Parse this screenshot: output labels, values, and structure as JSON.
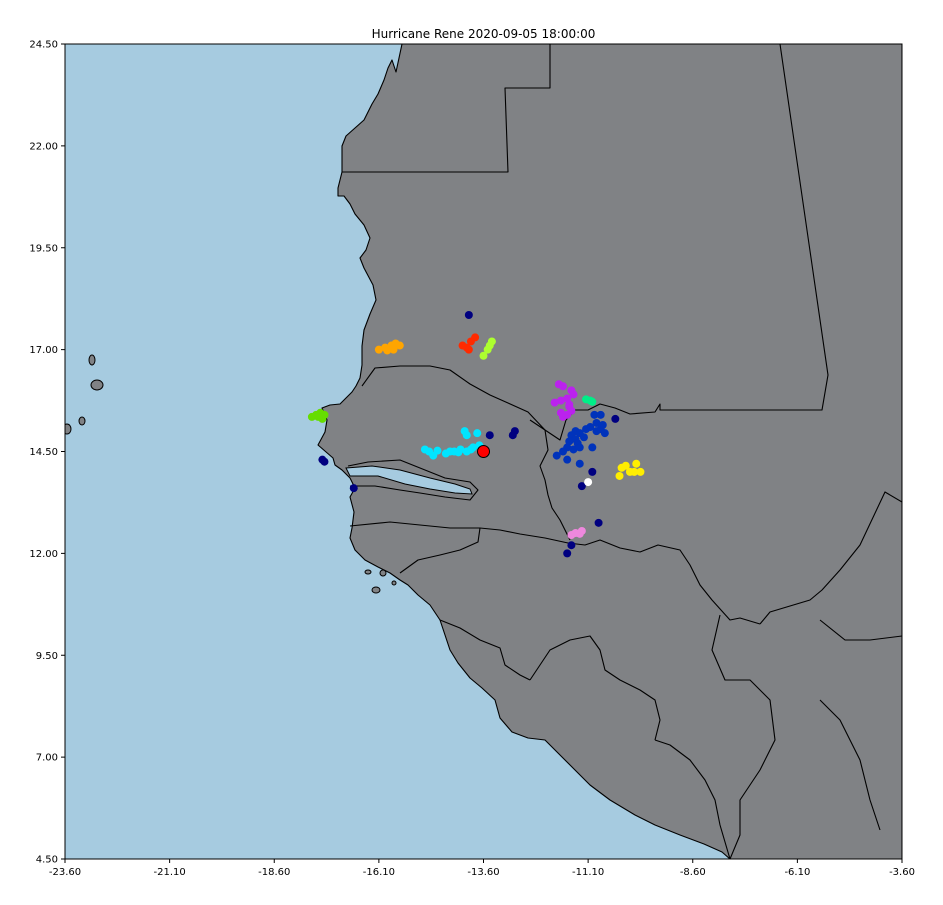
{
  "title": "Hurricane Rene 2020-09-05 18:00:00",
  "colors": {
    "ocean": "#a6cbe0",
    "land": "#808285",
    "border": "#000000"
  },
  "chart_data": {
    "type": "scatter",
    "title": "Hurricane Rene 2020-09-05 18:00:00",
    "xlabel": "",
    "ylabel": "",
    "xlim": [
      -23.6,
      -3.6
    ],
    "ylim": [
      4.5,
      24.5
    ],
    "x_ticks": [
      "-23.60",
      "-21.10",
      "-18.60",
      "-16.10",
      "-13.60",
      "-11.10",
      "-8.60",
      "-6.10",
      "-3.60"
    ],
    "y_ticks": [
      "4.50",
      "7.00",
      "9.50",
      "12.00",
      "14.50",
      "17.00",
      "19.50",
      "22.00",
      "24.50"
    ],
    "grid": false,
    "legend": "none",
    "storm_center": {
      "lon": -13.6,
      "lat": 14.5,
      "color": "#ff0000"
    },
    "clusters": [
      {
        "color": "#ffa500",
        "points": [
          [
            -16.1,
            17.0
          ],
          [
            -15.95,
            17.05
          ],
          [
            -15.8,
            17.1
          ],
          [
            -15.7,
            17.15
          ],
          [
            -15.6,
            17.1
          ],
          [
            -15.9,
            16.98
          ],
          [
            -15.75,
            17.0
          ]
        ]
      },
      {
        "color": "#ff2a00",
        "points": [
          [
            -13.8,
            17.3
          ],
          [
            -13.9,
            17.2
          ],
          [
            -14.0,
            17.05
          ],
          [
            -13.95,
            17.0
          ],
          [
            -14.1,
            17.1
          ]
        ]
      },
      {
        "color": "#adff2f",
        "points": [
          [
            -13.4,
            17.2
          ],
          [
            -13.45,
            17.1
          ],
          [
            -13.5,
            17.0
          ],
          [
            -13.6,
            16.85
          ]
        ]
      },
      {
        "color": "#000080",
        "points": [
          [
            -13.95,
            17.85
          ],
          [
            -13.45,
            14.9
          ],
          [
            -12.85,
            15.0
          ],
          [
            -12.9,
            14.9
          ],
          [
            -16.7,
            13.6
          ],
          [
            -17.4,
            14.25
          ],
          [
            -17.45,
            14.3
          ],
          [
            -11.6,
            12.0
          ],
          [
            -11.5,
            12.2
          ],
          [
            -10.85,
            12.75
          ],
          [
            -11.25,
            13.65
          ],
          [
            -11.0,
            14.0
          ],
          [
            -10.45,
            15.3
          ]
        ]
      },
      {
        "color": "#66dd00",
        "points": [
          [
            -17.7,
            15.35
          ],
          [
            -17.6,
            15.4
          ],
          [
            -17.5,
            15.45
          ],
          [
            -17.45,
            15.3
          ],
          [
            -17.55,
            15.35
          ],
          [
            -17.4,
            15.4
          ]
        ]
      },
      {
        "color": "#00e5ff",
        "points": [
          [
            -15.0,
            14.55
          ],
          [
            -14.9,
            14.5
          ],
          [
            -14.7,
            14.52
          ],
          [
            -14.5,
            14.45
          ],
          [
            -14.3,
            14.5
          ],
          [
            -14.15,
            14.55
          ],
          [
            -14.0,
            14.5
          ],
          [
            -13.85,
            14.6
          ],
          [
            -13.7,
            14.65
          ],
          [
            -14.0,
            14.9
          ],
          [
            -14.05,
            15.0
          ],
          [
            -13.75,
            14.95
          ],
          [
            -14.8,
            14.4
          ],
          [
            -14.4,
            14.5
          ],
          [
            -14.2,
            14.48
          ],
          [
            -13.9,
            14.55
          ]
        ]
      },
      {
        "color": "#bb22ee",
        "points": [
          [
            -11.8,
            16.15
          ],
          [
            -11.7,
            16.1
          ],
          [
            -11.5,
            16.0
          ],
          [
            -11.45,
            15.9
          ],
          [
            -11.6,
            15.8
          ],
          [
            -11.75,
            15.75
          ],
          [
            -11.9,
            15.7
          ],
          [
            -11.55,
            15.6
          ],
          [
            -11.5,
            15.5
          ],
          [
            -11.6,
            15.4
          ],
          [
            -11.7,
            15.35
          ],
          [
            -11.75,
            15.45
          ],
          [
            -11.55,
            15.65
          ]
        ]
      },
      {
        "color": "#00ee88",
        "points": [
          [
            -11.05,
            15.75
          ],
          [
            -11.15,
            15.78
          ],
          [
            -11.0,
            15.72
          ]
        ]
      },
      {
        "color": "#0033bb",
        "points": [
          [
            -11.4,
            15.0
          ],
          [
            -11.5,
            14.9
          ],
          [
            -11.3,
            14.95
          ],
          [
            -11.2,
            14.85
          ],
          [
            -11.4,
            14.8
          ],
          [
            -11.55,
            14.75
          ],
          [
            -11.35,
            14.7
          ],
          [
            -11.6,
            14.6
          ],
          [
            -11.7,
            14.5
          ],
          [
            -11.45,
            14.55
          ],
          [
            -11.3,
            14.6
          ],
          [
            -10.9,
            15.2
          ],
          [
            -10.8,
            15.05
          ],
          [
            -10.7,
            14.95
          ],
          [
            -10.95,
            15.4
          ],
          [
            -10.8,
            15.4
          ],
          [
            -10.9,
            15.0
          ],
          [
            -11.05,
            15.1
          ],
          [
            -11.3,
            14.2
          ],
          [
            -11.6,
            14.3
          ],
          [
            -11.85,
            14.4
          ],
          [
            -11.0,
            14.6
          ],
          [
            -10.75,
            15.15
          ],
          [
            -11.15,
            15.05
          ]
        ]
      },
      {
        "color": "#ffffff",
        "points": [
          [
            -11.1,
            13.75
          ]
        ]
      },
      {
        "color": "#ffee00",
        "points": [
          [
            -10.2,
            14.15
          ],
          [
            -10.3,
            14.1
          ],
          [
            -10.1,
            14.0
          ],
          [
            -9.95,
            14.2
          ],
          [
            -10.0,
            14.0
          ],
          [
            -10.35,
            13.9
          ],
          [
            -9.85,
            14.0
          ]
        ]
      },
      {
        "color": "#ee88dd",
        "points": [
          [
            -11.5,
            12.45
          ],
          [
            -11.4,
            12.5
          ],
          [
            -11.25,
            12.55
          ],
          [
            -11.3,
            12.48
          ]
        ]
      }
    ]
  }
}
